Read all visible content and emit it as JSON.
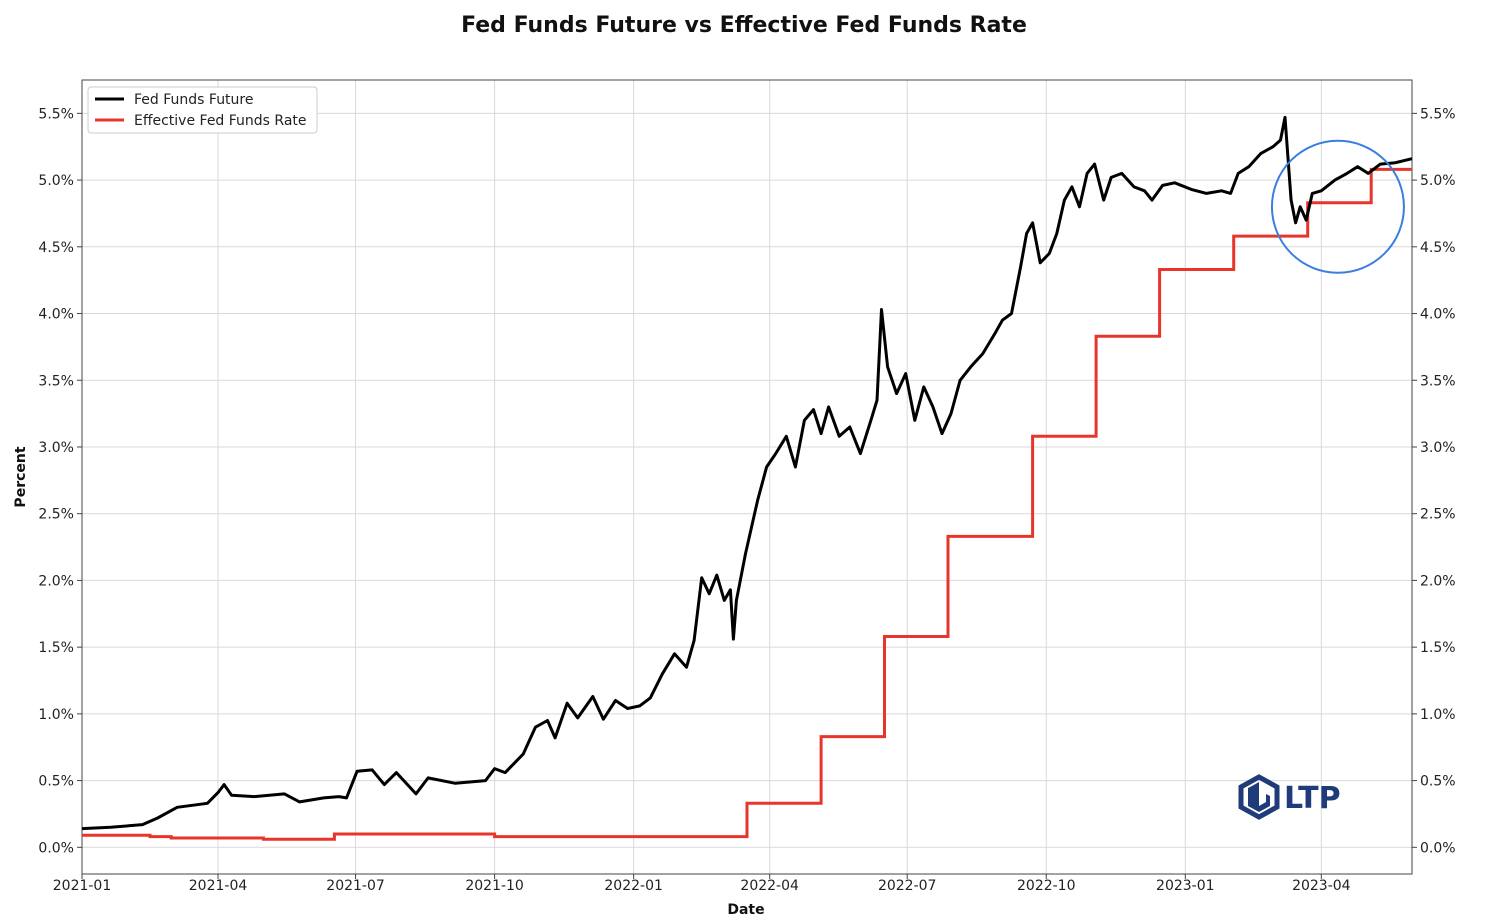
{
  "chart_data": {
    "type": "line",
    "title": "Fed Funds Future vs Effective Fed Funds Rate",
    "xlabel": "Date",
    "ylabel": "Percent",
    "xlim": [
      "2021-01-01",
      "2023-05-31"
    ],
    "ylim": [
      -0.2,
      5.75
    ],
    "x_ticks": [
      "2021-01",
      "2021-04",
      "2021-07",
      "2021-10",
      "2022-01",
      "2022-04",
      "2022-07",
      "2022-10",
      "2023-01",
      "2023-04"
    ],
    "y_ticks": [
      "0.0%",
      "0.5%",
      "1.0%",
      "1.5%",
      "2.0%",
      "2.5%",
      "3.0%",
      "3.5%",
      "4.0%",
      "4.5%",
      "5.0%",
      "5.5%"
    ],
    "y_tick_values": [
      0,
      0.5,
      1.0,
      1.5,
      2.0,
      2.5,
      3.0,
      3.5,
      4.0,
      4.5,
      5.0,
      5.5
    ],
    "right_axis_mirror": true,
    "grid": true,
    "legend_position": "top-left",
    "series": [
      {
        "name": "Fed Funds Future",
        "color": "#000000",
        "points": [
          [
            "2021-01-01",
            0.14
          ],
          [
            "2021-01-20",
            0.15
          ],
          [
            "2021-02-10",
            0.17
          ],
          [
            "2021-02-20",
            0.22
          ],
          [
            "2021-03-05",
            0.3
          ],
          [
            "2021-03-25",
            0.33
          ],
          [
            "2021-04-01",
            0.41
          ],
          [
            "2021-04-05",
            0.47
          ],
          [
            "2021-04-10",
            0.39
          ],
          [
            "2021-04-25",
            0.38
          ],
          [
            "2021-05-15",
            0.4
          ],
          [
            "2021-05-25",
            0.34
          ],
          [
            "2021-06-10",
            0.37
          ],
          [
            "2021-06-20",
            0.38
          ],
          [
            "2021-06-25",
            0.37
          ],
          [
            "2021-07-02",
            0.57
          ],
          [
            "2021-07-12",
            0.58
          ],
          [
            "2021-07-20",
            0.47
          ],
          [
            "2021-07-28",
            0.56
          ],
          [
            "2021-08-10",
            0.4
          ],
          [
            "2021-08-18",
            0.52
          ],
          [
            "2021-09-05",
            0.48
          ],
          [
            "2021-09-25",
            0.5
          ],
          [
            "2021-10-01",
            0.59
          ],
          [
            "2021-10-08",
            0.56
          ],
          [
            "2021-10-20",
            0.7
          ],
          [
            "2021-10-28",
            0.9
          ],
          [
            "2021-11-05",
            0.95
          ],
          [
            "2021-11-10",
            0.82
          ],
          [
            "2021-11-18",
            1.08
          ],
          [
            "2021-11-25",
            0.97
          ],
          [
            "2021-12-05",
            1.13
          ],
          [
            "2021-12-12",
            0.96
          ],
          [
            "2021-12-20",
            1.1
          ],
          [
            "2021-12-28",
            1.04
          ],
          [
            "2022-01-05",
            1.06
          ],
          [
            "2022-01-12",
            1.12
          ],
          [
            "2022-01-20",
            1.3
          ],
          [
            "2022-01-28",
            1.45
          ],
          [
            "2022-02-05",
            1.35
          ],
          [
            "2022-02-10",
            1.55
          ],
          [
            "2022-02-15",
            2.02
          ],
          [
            "2022-02-20",
            1.9
          ],
          [
            "2022-02-25",
            2.04
          ],
          [
            "2022-03-02",
            1.85
          ],
          [
            "2022-03-06",
            1.93
          ],
          [
            "2022-03-08",
            1.56
          ],
          [
            "2022-03-10",
            1.85
          ],
          [
            "2022-03-16",
            2.2
          ],
          [
            "2022-03-24",
            2.6
          ],
          [
            "2022-03-30",
            2.85
          ],
          [
            "2022-04-05",
            2.95
          ],
          [
            "2022-04-12",
            3.08
          ],
          [
            "2022-04-18",
            2.85
          ],
          [
            "2022-04-24",
            3.2
          ],
          [
            "2022-04-30",
            3.28
          ],
          [
            "2022-05-05",
            3.1
          ],
          [
            "2022-05-10",
            3.3
          ],
          [
            "2022-05-17",
            3.08
          ],
          [
            "2022-05-24",
            3.15
          ],
          [
            "2022-05-31",
            2.95
          ],
          [
            "2022-06-07",
            3.2
          ],
          [
            "2022-06-11",
            3.35
          ],
          [
            "2022-06-14",
            4.03
          ],
          [
            "2022-06-18",
            3.6
          ],
          [
            "2022-06-24",
            3.4
          ],
          [
            "2022-06-30",
            3.55
          ],
          [
            "2022-07-06",
            3.2
          ],
          [
            "2022-07-12",
            3.45
          ],
          [
            "2022-07-18",
            3.3
          ],
          [
            "2022-07-24",
            3.1
          ],
          [
            "2022-07-30",
            3.25
          ],
          [
            "2022-08-05",
            3.5
          ],
          [
            "2022-08-12",
            3.6
          ],
          [
            "2022-08-20",
            3.7
          ],
          [
            "2022-08-28",
            3.85
          ],
          [
            "2022-09-02",
            3.95
          ],
          [
            "2022-09-08",
            4.0
          ],
          [
            "2022-09-14",
            4.35
          ],
          [
            "2022-09-18",
            4.6
          ],
          [
            "2022-09-22",
            4.68
          ],
          [
            "2022-09-27",
            4.38
          ],
          [
            "2022-10-03",
            4.45
          ],
          [
            "2022-10-08",
            4.6
          ],
          [
            "2022-10-13",
            4.85
          ],
          [
            "2022-10-18",
            4.95
          ],
          [
            "2022-10-23",
            4.8
          ],
          [
            "2022-10-28",
            5.05
          ],
          [
            "2022-11-02",
            5.12
          ],
          [
            "2022-11-08",
            4.85
          ],
          [
            "2022-11-13",
            5.02
          ],
          [
            "2022-11-20",
            5.05
          ],
          [
            "2022-11-28",
            4.95
          ],
          [
            "2022-12-05",
            4.92
          ],
          [
            "2022-12-10",
            4.85
          ],
          [
            "2022-12-17",
            4.96
          ],
          [
            "2022-12-25",
            4.98
          ],
          [
            "2023-01-05",
            4.93
          ],
          [
            "2023-01-15",
            4.9
          ],
          [
            "2023-01-25",
            4.92
          ],
          [
            "2023-01-31",
            4.9
          ],
          [
            "2023-02-05",
            5.05
          ],
          [
            "2023-02-12",
            5.1
          ],
          [
            "2023-02-20",
            5.2
          ],
          [
            "2023-02-28",
            5.25
          ],
          [
            "2023-03-05",
            5.3
          ],
          [
            "2023-03-08",
            5.47
          ],
          [
            "2023-03-12",
            4.85
          ],
          [
            "2023-03-15",
            4.68
          ],
          [
            "2023-03-18",
            4.8
          ],
          [
            "2023-03-22",
            4.7
          ],
          [
            "2023-03-26",
            4.9
          ],
          [
            "2023-04-01",
            4.92
          ],
          [
            "2023-04-10",
            5.0
          ],
          [
            "2023-04-18",
            5.05
          ],
          [
            "2023-04-25",
            5.1
          ],
          [
            "2023-05-02",
            5.05
          ],
          [
            "2023-05-10",
            5.12
          ],
          [
            "2023-05-20",
            5.13
          ],
          [
            "2023-05-31",
            5.16
          ]
        ]
      },
      {
        "name": "Effective Fed Funds Rate",
        "color": "#e8352b",
        "steps": [
          [
            "2021-01-01",
            0.09
          ],
          [
            "2021-02-15",
            0.08
          ],
          [
            "2021-03-01",
            0.07
          ],
          [
            "2021-05-01",
            0.06
          ],
          [
            "2021-06-17",
            0.1
          ],
          [
            "2021-10-01",
            0.08
          ],
          [
            "2022-03-17",
            0.33
          ],
          [
            "2022-05-05",
            0.83
          ],
          [
            "2022-06-16",
            1.58
          ],
          [
            "2022-07-28",
            2.33
          ],
          [
            "2022-09-22",
            3.08
          ],
          [
            "2022-11-03",
            3.83
          ],
          [
            "2022-12-15",
            4.33
          ],
          [
            "2023-02-02",
            4.58
          ],
          [
            "2023-03-23",
            4.83
          ],
          [
            "2023-05-04",
            5.08
          ],
          [
            "2023-05-31",
            5.08
          ]
        ]
      }
    ]
  },
  "annotation": {
    "type": "circle",
    "color": "#3a7fde"
  },
  "logo": {
    "text": "LTP",
    "color": "#1f3b7a"
  }
}
